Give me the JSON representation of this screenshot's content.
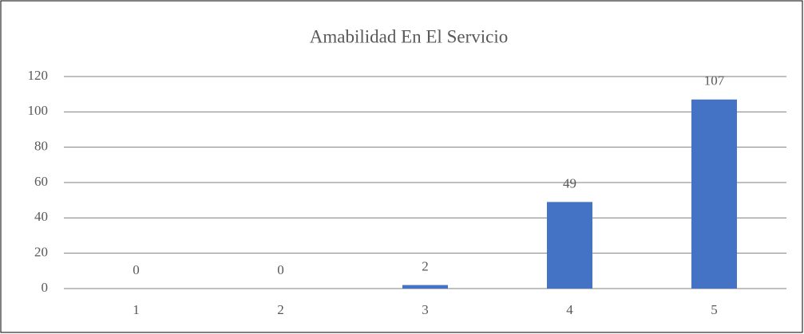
{
  "chart_data": {
    "type": "bar",
    "title": "Amabilidad En El Servicio",
    "categories": [
      "1",
      "2",
      "3",
      "4",
      "5"
    ],
    "values": [
      0,
      0,
      2,
      49,
      107
    ],
    "color": "#4472c4",
    "ylim": [
      0,
      120
    ],
    "yticks": [
      0,
      20,
      40,
      60,
      80,
      100,
      120
    ],
    "grid": true,
    "data_labels": true
  }
}
